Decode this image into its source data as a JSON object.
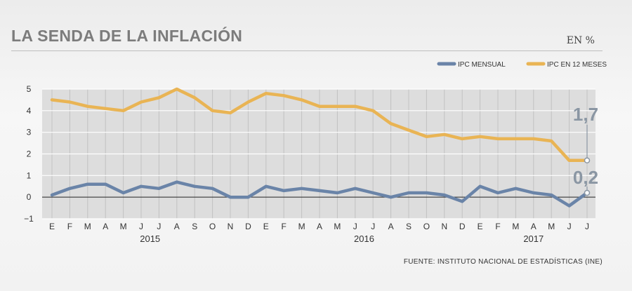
{
  "header": {
    "title": "LA SENDA DE LA INFLACIÓN",
    "unit": "EN %"
  },
  "source": "FUENTE: INSTITUTO NACIONAL DE ESTADÍSTICAS (INE)",
  "colors": {
    "monthly": "#6a84a8",
    "annual": "#e9b454",
    "callout": "#8a96a3",
    "zero_line": "#222222"
  },
  "chart_data": {
    "type": "line",
    "title": "LA SENDA DE LA INFLACIÓN",
    "xlabel": "",
    "ylabel": "",
    "ylim": [
      -1,
      5
    ],
    "yticks": [
      5,
      4,
      3,
      2,
      1,
      0,
      -1
    ],
    "grid": true,
    "legend_position": "top-right",
    "categories": [
      "E",
      "F",
      "M",
      "A",
      "M",
      "J",
      "J",
      "A",
      "S",
      "O",
      "N",
      "D",
      "E",
      "F",
      "M",
      "A",
      "M",
      "J",
      "J",
      "A",
      "S",
      "O",
      "N",
      "D",
      "E",
      "F",
      "M",
      "A",
      "M",
      "J",
      "J"
    ],
    "year_labels": [
      {
        "label": "2015",
        "at_index": 5.5
      },
      {
        "label": "2016",
        "at_index": 17.5
      },
      {
        "label": "2017",
        "at_index": 27
      }
    ],
    "series": [
      {
        "name": "IPC MENSUAL",
        "values": [
          0.1,
          0.4,
          0.6,
          0.6,
          0.2,
          0.5,
          0.4,
          0.7,
          0.5,
          0.4,
          0.0,
          0.0,
          0.5,
          0.3,
          0.4,
          0.3,
          0.2,
          0.4,
          0.2,
          0.0,
          0.2,
          0.2,
          0.1,
          -0.2,
          0.5,
          0.2,
          0.4,
          0.2,
          0.1,
          -0.4,
          0.2
        ]
      },
      {
        "name": "IPC EN 12 MESES",
        "values": [
          4.5,
          4.4,
          4.2,
          4.1,
          4.0,
          4.4,
          4.6,
          5.0,
          4.6,
          4.0,
          3.9,
          4.4,
          4.8,
          4.7,
          4.5,
          4.2,
          4.2,
          4.2,
          4.0,
          3.4,
          3.1,
          2.8,
          2.9,
          2.7,
          2.8,
          2.7,
          2.7,
          2.7,
          2.6,
          1.7,
          1.7
        ]
      }
    ],
    "callouts": [
      {
        "label": "1,7",
        "series": "IPC EN 12 MESES",
        "value": 1.7
      },
      {
        "label": "0,2",
        "series": "IPC MENSUAL",
        "value": 0.2
      }
    ]
  }
}
